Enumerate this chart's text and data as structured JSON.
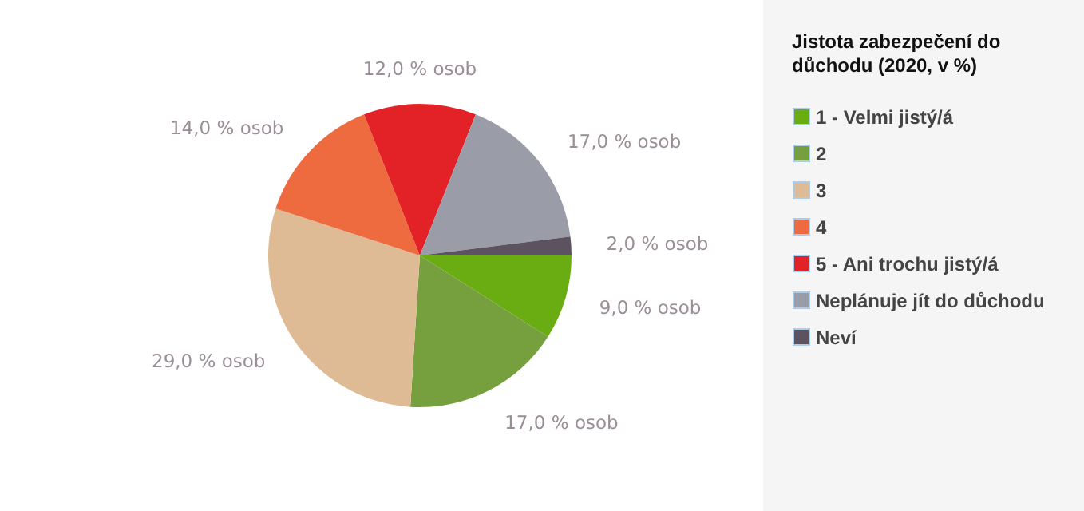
{
  "chart_data": {
    "type": "pie",
    "legend_title": "Jistota zabezpečení do důchodu (2020, v %)",
    "legend": "right",
    "categories": [
      "1 - Velmi jistý/á",
      "2",
      "3",
      "4",
      "5 - Ani trochu jistý/á",
      "Neplánuje jít do důchodu",
      "Neví"
    ],
    "values": [
      9,
      17,
      29,
      14,
      12,
      17,
      2
    ],
    "value_labels": [
      "9,0 % osob",
      "17,0 % osob",
      "29,0 % osob",
      "14,0 % osob",
      "12,0 % osob",
      "17,0 % osob",
      "2,0 % osob"
    ],
    "colors": [
      "#6aad13",
      "#76a03e",
      "#debb94",
      "#ee6b40",
      "#e22226",
      "#9a9da8",
      "#5d525f"
    ]
  }
}
